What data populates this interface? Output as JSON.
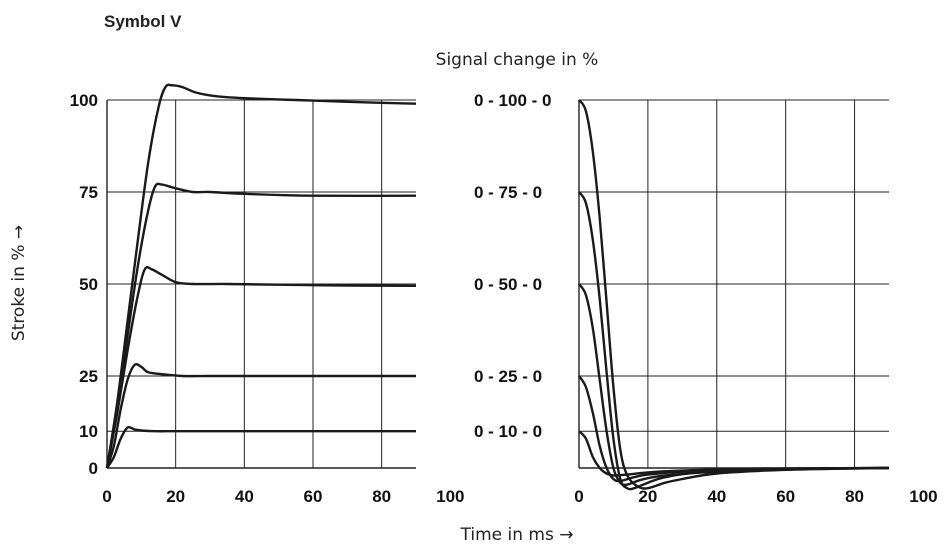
{
  "title": "Symbol V",
  "top_label": "Signal change in %",
  "ylabel": "Stroke in % →",
  "xlabel": "Time in ms →",
  "chart_data": [
    {
      "type": "line",
      "panel": "left",
      "xlim": [
        0,
        90
      ],
      "ylim": [
        0,
        100
      ],
      "x_ticks": [
        "0",
        "20",
        "40",
        "60",
        "80",
        "100"
      ],
      "y_ticks": [
        "0",
        "10",
        "25",
        "50",
        "75",
        "100"
      ],
      "series": [
        {
          "x": [
            0,
            2,
            4,
            6,
            8,
            10,
            14,
            20,
            30,
            40,
            60,
            90
          ],
          "y": [
            0,
            3,
            8,
            11,
            10.5,
            10.2,
            10,
            10,
            10,
            10,
            10,
            10
          ]
        },
        {
          "x": [
            0,
            2,
            4,
            6,
            8,
            10,
            12,
            16,
            22,
            30,
            40,
            60,
            90
          ],
          "y": [
            0,
            6,
            16,
            24,
            28,
            27.5,
            26,
            25.5,
            25,
            25,
            25,
            25,
            25
          ]
        },
        {
          "x": [
            0,
            3,
            6,
            9,
            11,
            13,
            16,
            20,
            25,
            35,
            50,
            70,
            90
          ],
          "y": [
            0,
            15,
            32,
            47,
            54,
            54,
            52.5,
            50.5,
            50,
            50,
            49.8,
            49.6,
            49.5
          ]
        },
        {
          "x": [
            0,
            3,
            6,
            9,
            12,
            14,
            16,
            20,
            25,
            30,
            40,
            60,
            90
          ],
          "y": [
            0,
            17,
            36,
            55,
            70,
            76.5,
            77,
            76,
            75,
            75,
            74.5,
            74,
            74
          ]
        },
        {
          "x": [
            0,
            3,
            6,
            9,
            12,
            15,
            17,
            19,
            22,
            26,
            32,
            40,
            55,
            70,
            90
          ],
          "y": [
            0,
            18,
            40,
            62,
            83,
            98,
            103.5,
            104,
            103.5,
            102,
            101,
            100.5,
            100,
            99.5,
            99
          ]
        }
      ]
    },
    {
      "type": "line",
      "panel": "right",
      "xlim": [
        0,
        90
      ],
      "ylim": [
        -6,
        100
      ],
      "x_ticks": [
        "0",
        "20",
        "40",
        "60",
        "80",
        "100"
      ],
      "series": [
        {
          "name": "0 - 100 - 0",
          "x": [
            0,
            2,
            4,
            6,
            8,
            10,
            12,
            14,
            17,
            20,
            25,
            30,
            40,
            60,
            90
          ],
          "y": [
            100,
            97,
            86,
            68,
            45,
            22,
            5,
            -2,
            -5,
            -5.5,
            -4,
            -3,
            -1.5,
            -0.5,
            0
          ]
        },
        {
          "name": "0 - 75 - 0",
          "x": [
            0,
            2,
            4,
            6,
            8,
            10,
            12,
            14,
            16,
            20,
            25,
            35,
            60,
            90
          ],
          "y": [
            75,
            72,
            62,
            46,
            26,
            8,
            -3,
            -5.5,
            -5.5,
            -4,
            -2.5,
            -1.2,
            -0.3,
            0
          ]
        },
        {
          "name": "0 - 50 - 0",
          "x": [
            0,
            2,
            4,
            6,
            8,
            10,
            12,
            14,
            18,
            25,
            40,
            60,
            90
          ],
          "y": [
            50,
            47,
            38,
            24,
            10,
            0,
            -4,
            -4.5,
            -3.2,
            -2,
            -1,
            -0.3,
            0
          ]
        },
        {
          "name": "0 - 25 - 0",
          "x": [
            0,
            2,
            4,
            6,
            8,
            10,
            12,
            16,
            20,
            30,
            50,
            90
          ],
          "y": [
            25,
            22,
            15,
            6,
            0,
            -3,
            -3.5,
            -2.5,
            -1.8,
            -1,
            -0.3,
            0
          ]
        },
        {
          "name": "0 - 10 - 0",
          "x": [
            0,
            2,
            4,
            6,
            8,
            10,
            14,
            20,
            30,
            50,
            90
          ],
          "y": [
            10,
            8,
            3,
            0,
            -1.5,
            -2,
            -1.8,
            -1.2,
            -0.7,
            -0.2,
            0
          ]
        }
      ]
    }
  ]
}
